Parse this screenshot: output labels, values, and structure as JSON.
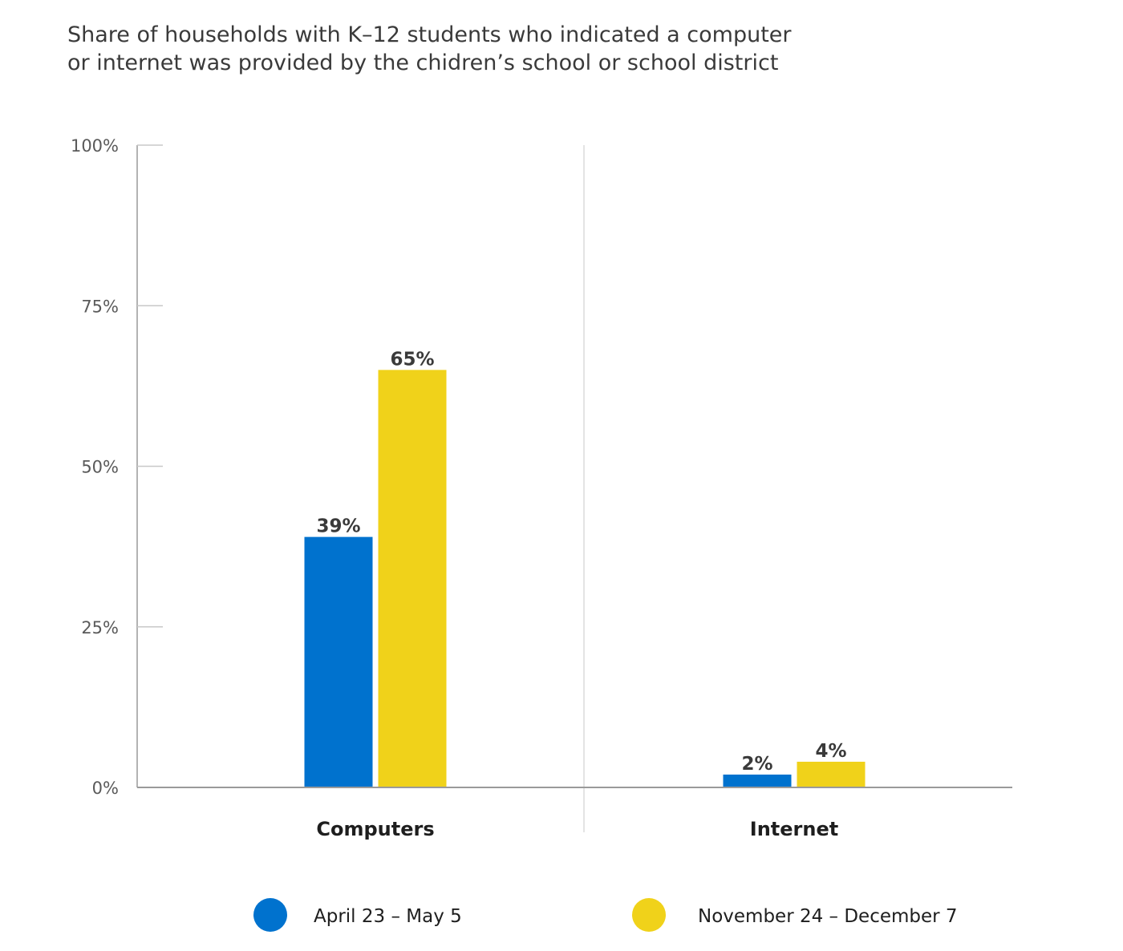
{
  "chart_data": {
    "type": "bar",
    "title_lines": [
      "Share of households with K–12 students who indicated a computer",
      "or internet was provided by the chidren’s school or school district"
    ],
    "categories": [
      "Computers",
      "Internet"
    ],
    "series": [
      {
        "name": "April 23 – May 5",
        "color": "#0072ce",
        "values": [
          39,
          2
        ]
      },
      {
        "name": "November 24 – December 7",
        "color": "#f0d21a",
        "values": [
          65,
          4
        ]
      }
    ],
    "value_labels": [
      [
        "39%",
        "2%"
      ],
      [
        "65%",
        "4%"
      ]
    ],
    "yticks": [
      {
        "value": 0,
        "label": "0%"
      },
      {
        "value": 25,
        "label": "25%"
      },
      {
        "value": 50,
        "label": "50%"
      },
      {
        "value": 75,
        "label": "75%"
      },
      {
        "value": 100,
        "label": "100%"
      }
    ],
    "ylim": [
      0,
      100
    ],
    "xlabel": "",
    "ylabel": "",
    "grid": false,
    "legend_position": "bottom"
  }
}
